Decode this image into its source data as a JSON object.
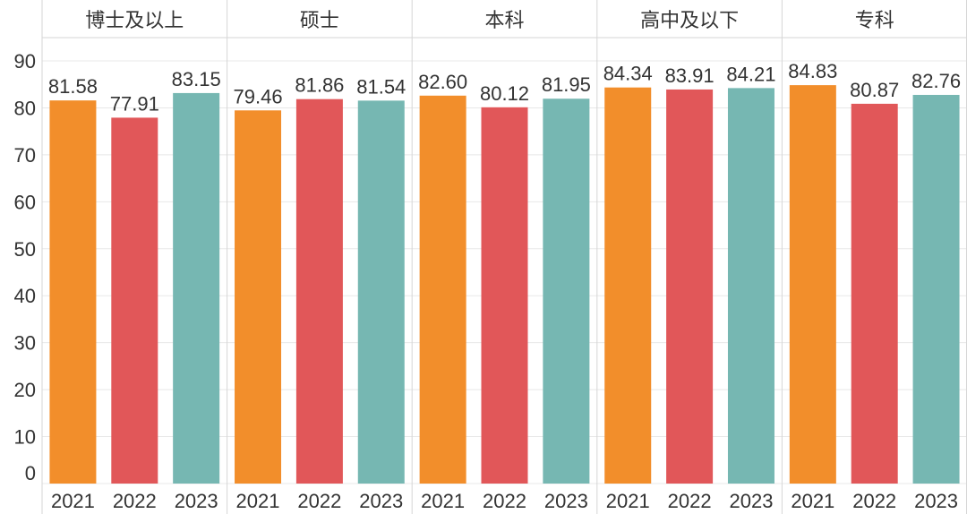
{
  "chart_data": {
    "type": "bar",
    "panels": [
      "博士及以上",
      "硕士",
      "本科",
      "高中及以下",
      "专科"
    ],
    "categories": [
      "2021",
      "2022",
      "2023"
    ],
    "values": [
      [
        81.58,
        77.91,
        83.15
      ],
      [
        79.46,
        81.86,
        81.54
      ],
      [
        82.6,
        80.12,
        81.95
      ],
      [
        84.34,
        83.91,
        84.21
      ],
      [
        84.83,
        80.87,
        82.76
      ]
    ],
    "value_labels": [
      [
        "81.58",
        "77.91",
        "83.15"
      ],
      [
        "79.46",
        "81.86",
        "81.54"
      ],
      [
        "82.60",
        "80.12",
        "81.95"
      ],
      [
        "84.34",
        "83.91",
        "84.21"
      ],
      [
        "84.83",
        "80.87",
        "82.76"
      ]
    ],
    "yticks": [
      0,
      10,
      20,
      30,
      40,
      50,
      60,
      70,
      80,
      90
    ],
    "ylim": [
      0,
      90
    ],
    "colors": [
      "#F28E2B",
      "#E15759",
      "#76B7B2"
    ],
    "grid": true,
    "legend": "none"
  }
}
